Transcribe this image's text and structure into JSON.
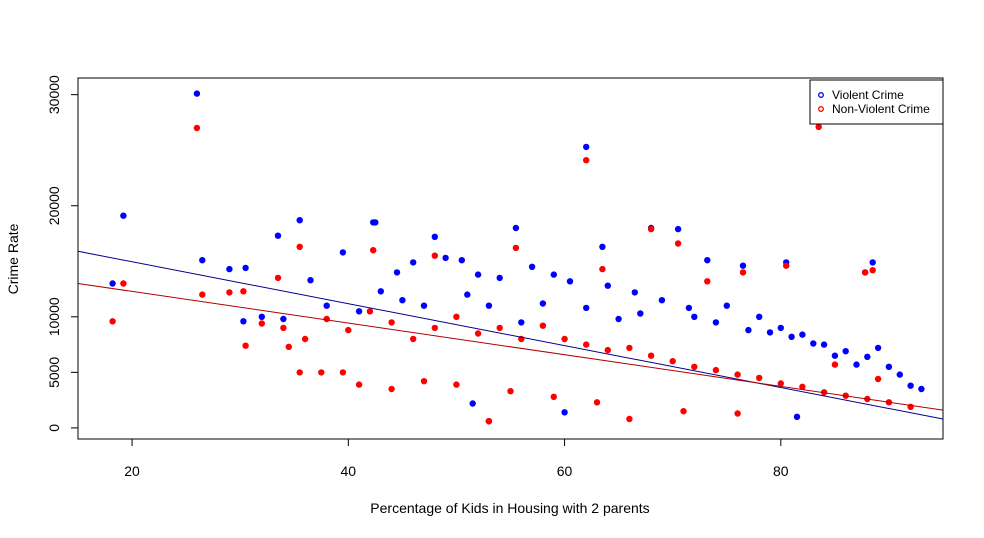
{
  "chart_data": {
    "type": "scatter",
    "title": "",
    "xlabel": "Percentage of Kids in Housing with 2 parents",
    "ylabel": "Crime Rate",
    "xlim": [
      15,
      95
    ],
    "ylim": [
      -1000,
      31500
    ],
    "x_ticks": [
      20,
      40,
      60,
      80
    ],
    "y_ticks": [
      0,
      5000,
      10000,
      20000,
      30000
    ],
    "x_tick_labels": [
      "20",
      "40",
      "60",
      "80"
    ],
    "y_tick_labels": [
      "0",
      "5000",
      "10000",
      "20000",
      "30000"
    ],
    "grid": false,
    "legend_position": "top-right",
    "series": [
      {
        "name": "Violent Crime",
        "color": "#0000ff",
        "marker": "filled-circle",
        "trend_line": {
          "x": [
            15,
            95
          ],
          "y": [
            15900,
            800
          ]
        },
        "points": [
          [
            26,
            30100
          ],
          [
            62,
            25300
          ],
          [
            19.2,
            19100
          ],
          [
            35.5,
            18700
          ],
          [
            42.3,
            18500
          ],
          [
            42.5,
            18500
          ],
          [
            55.5,
            18000
          ],
          [
            33.5,
            17300
          ],
          [
            48,
            17200
          ],
          [
            68,
            18000
          ],
          [
            70.5,
            17900
          ],
          [
            26.5,
            15100
          ],
          [
            29,
            14300
          ],
          [
            30.5,
            14400
          ],
          [
            63.5,
            16300
          ],
          [
            88.5,
            14900
          ],
          [
            80.5,
            14900
          ],
          [
            87.8,
            14000
          ],
          [
            76.5,
            14600
          ],
          [
            73.2,
            15100
          ],
          [
            18.2,
            13000
          ],
          [
            36.5,
            13300
          ],
          [
            39.5,
            15800
          ],
          [
            44.5,
            14000
          ],
          [
            46,
            14900
          ],
          [
            49,
            15300
          ],
          [
            50.5,
            15100
          ],
          [
            52,
            13800
          ],
          [
            54,
            13500
          ],
          [
            57,
            14500
          ],
          [
            59,
            13800
          ],
          [
            60.5,
            13200
          ],
          [
            64,
            12800
          ],
          [
            66.5,
            12200
          ],
          [
            69,
            11500
          ],
          [
            71.5,
            10800
          ],
          [
            75,
            11000
          ],
          [
            78,
            10000
          ],
          [
            80,
            9000
          ],
          [
            82,
            8400
          ],
          [
            84,
            7500
          ],
          [
            86,
            6900
          ],
          [
            88,
            6400
          ],
          [
            90,
            5500
          ],
          [
            92,
            3800
          ],
          [
            30.3,
            9600
          ],
          [
            32,
            10000
          ],
          [
            34,
            9800
          ],
          [
            38,
            11000
          ],
          [
            41,
            10500
          ],
          [
            43,
            12300
          ],
          [
            45,
            11500
          ],
          [
            47,
            11000
          ],
          [
            51,
            12000
          ],
          [
            53,
            11000
          ],
          [
            51.5,
            2200
          ],
          [
            53,
            600
          ],
          [
            60,
            1400
          ],
          [
            56,
            9500
          ],
          [
            58,
            11200
          ],
          [
            62,
            10800
          ],
          [
            65,
            9800
          ],
          [
            67,
            10300
          ],
          [
            72,
            10000
          ],
          [
            74,
            9500
          ],
          [
            77,
            8800
          ],
          [
            79,
            8600
          ],
          [
            81,
            8200
          ],
          [
            83,
            7600
          ],
          [
            85,
            6500
          ],
          [
            87,
            5700
          ],
          [
            89,
            7200
          ],
          [
            91,
            4800
          ],
          [
            93,
            3500
          ],
          [
            81.5,
            1000
          ]
        ]
      },
      {
        "name": "Non-Violent Crime",
        "color": "#ff0000",
        "marker": "filled-circle",
        "trend_line": {
          "x": [
            15,
            95
          ],
          "y": [
            13000,
            1600
          ]
        },
        "points": [
          [
            26,
            27000
          ],
          [
            83.5,
            27100
          ],
          [
            62,
            24100
          ],
          [
            35.5,
            16300
          ],
          [
            55.5,
            16200
          ],
          [
            68,
            17900
          ],
          [
            42.3,
            16000
          ],
          [
            48,
            15500
          ],
          [
            70.5,
            16600
          ],
          [
            63.5,
            14300
          ],
          [
            19.2,
            13000
          ],
          [
            18.2,
            9600
          ],
          [
            26.5,
            12000
          ],
          [
            29,
            12200
          ],
          [
            30.3,
            12300
          ],
          [
            30.5,
            7400
          ],
          [
            33.5,
            13500
          ],
          [
            34.5,
            7300
          ],
          [
            35.5,
            5000
          ],
          [
            37.5,
            5000
          ],
          [
            39.5,
            5000
          ],
          [
            88.5,
            14200
          ],
          [
            87.8,
            14000
          ],
          [
            80.5,
            14600
          ],
          [
            76.5,
            14000
          ],
          [
            73.2,
            13200
          ],
          [
            32,
            9400
          ],
          [
            34,
            9000
          ],
          [
            36,
            8000
          ],
          [
            38,
            9800
          ],
          [
            40,
            8800
          ],
          [
            42,
            10500
          ],
          [
            44,
            9500
          ],
          [
            46,
            8000
          ],
          [
            48,
            9000
          ],
          [
            50,
            10000
          ],
          [
            52,
            8500
          ],
          [
            53,
            600
          ],
          [
            54,
            9000
          ],
          [
            56,
            8000
          ],
          [
            58,
            9200
          ],
          [
            60,
            8000
          ],
          [
            62,
            7500
          ],
          [
            64,
            7000
          ],
          [
            66,
            7200
          ],
          [
            68,
            6500
          ],
          [
            70,
            6000
          ],
          [
            72,
            5500
          ],
          [
            74,
            5200
          ],
          [
            76,
            4800
          ],
          [
            78,
            4500
          ],
          [
            80,
            4000
          ],
          [
            82,
            3700
          ],
          [
            84,
            3200
          ],
          [
            86,
            2900
          ],
          [
            88,
            2600
          ],
          [
            90,
            2300
          ],
          [
            92,
            1900
          ],
          [
            41,
            3900
          ],
          [
            44,
            3500
          ],
          [
            47,
            4200
          ],
          [
            50,
            3900
          ],
          [
            55,
            3300
          ],
          [
            59,
            2800
          ],
          [
            63,
            2300
          ],
          [
            66,
            800
          ],
          [
            71,
            1500
          ],
          [
            76,
            1300
          ],
          [
            85,
            5700
          ],
          [
            89,
            4400
          ]
        ]
      }
    ]
  }
}
